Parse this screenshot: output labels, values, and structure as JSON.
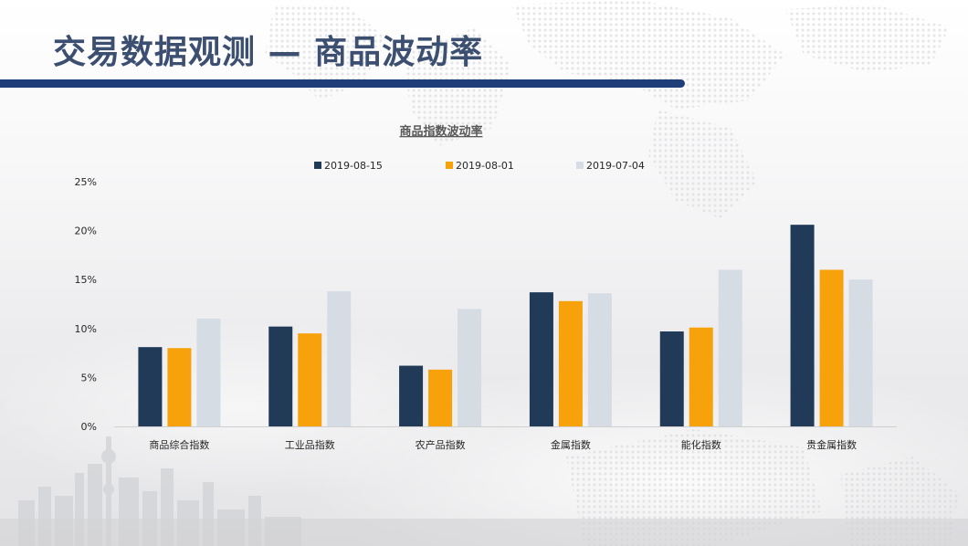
{
  "slide": {
    "title": "交易数据观测 — 商品波动率"
  },
  "colors": {
    "title_text": "#3c4f71",
    "title_rule": "#1e3d79"
  },
  "chart_data": {
    "type": "bar",
    "title": "商品指数波动率",
    "categories": [
      "商品综合指数",
      "工业品指数",
      "农产品指数",
      "金属指数",
      "能化指数",
      "贵金属指数"
    ],
    "series": [
      {
        "name": "2019-08-15",
        "color": "#203a57",
        "values": [
          8.1,
          10.2,
          6.2,
          13.7,
          9.7,
          20.6
        ]
      },
      {
        "name": "2019-08-01",
        "color": "#f7a20b",
        "values": [
          8.0,
          9.5,
          5.8,
          12.8,
          10.1,
          16.0
        ]
      },
      {
        "name": "2019-07-04",
        "color": "#d6dce4",
        "values": [
          11.0,
          13.8,
          12.0,
          13.6,
          16.0,
          15.0
        ]
      }
    ],
    "ylim": [
      0,
      25
    ],
    "yticks": [
      0,
      5,
      10,
      15,
      20,
      25
    ],
    "ytick_labels": [
      "0%",
      "5%",
      "10%",
      "15%",
      "20%",
      "25%"
    ],
    "legend_position": "top",
    "grid": false,
    "xlabel": "",
    "ylabel": ""
  }
}
